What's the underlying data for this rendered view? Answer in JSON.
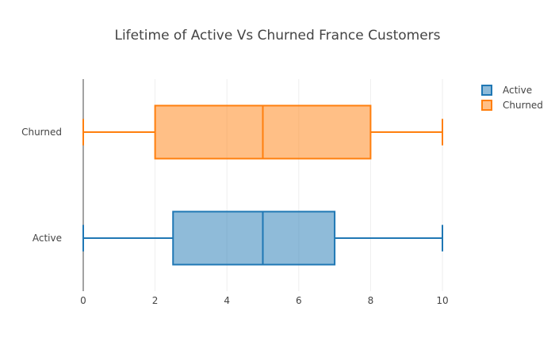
{
  "chart_data": {
    "type": "box",
    "orientation": "horizontal",
    "title": "Lifetime of Active Vs Churned France Customers",
    "xlabel": "",
    "ylabel": "",
    "xlim": [
      0,
      10
    ],
    "x_ticks": [
      "0",
      "2",
      "4",
      "6",
      "8",
      "10"
    ],
    "grid": "vertical",
    "legend_position": "top-right",
    "series": [
      {
        "name": "Active",
        "min": 0,
        "q1": 2.5,
        "median": 5,
        "q3": 7,
        "max": 10,
        "color": "#1f77b4"
      },
      {
        "name": "Churned",
        "min": 0,
        "q1": 2,
        "median": 5,
        "q3": 8,
        "max": 10,
        "color": "#ff7f0e"
      }
    ]
  }
}
